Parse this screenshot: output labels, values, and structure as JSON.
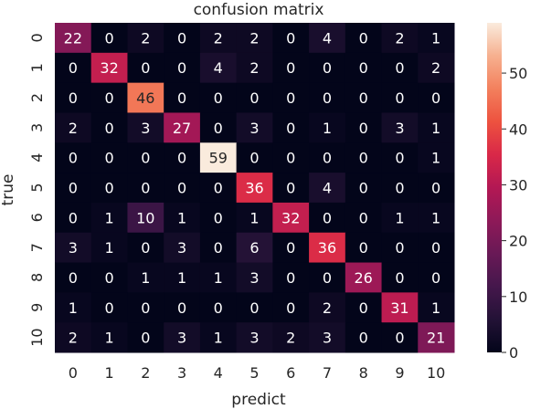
{
  "chart_data": {
    "type": "heatmap",
    "title": "confusion matrix",
    "xlabel": "predict",
    "ylabel": "true",
    "x_categories": [
      "0",
      "1",
      "2",
      "3",
      "4",
      "5",
      "6",
      "7",
      "8",
      "9",
      "10"
    ],
    "y_categories": [
      "0",
      "1",
      "2",
      "3",
      "4",
      "5",
      "6",
      "7",
      "8",
      "9",
      "10"
    ],
    "values": [
      [
        22,
        0,
        2,
        0,
        2,
        2,
        0,
        4,
        0,
        2,
        1
      ],
      [
        0,
        32,
        0,
        0,
        4,
        2,
        0,
        0,
        0,
        0,
        2
      ],
      [
        0,
        0,
        46,
        0,
        0,
        0,
        0,
        0,
        0,
        0,
        0
      ],
      [
        2,
        0,
        3,
        27,
        0,
        3,
        0,
        1,
        0,
        3,
        1
      ],
      [
        0,
        0,
        0,
        0,
        59,
        0,
        0,
        0,
        0,
        0,
        1
      ],
      [
        0,
        0,
        0,
        0,
        0,
        36,
        0,
        4,
        0,
        0,
        0
      ],
      [
        0,
        1,
        10,
        1,
        0,
        1,
        32,
        0,
        0,
        1,
        1
      ],
      [
        3,
        1,
        0,
        3,
        0,
        6,
        0,
        36,
        0,
        0,
        0
      ],
      [
        0,
        0,
        1,
        1,
        1,
        3,
        0,
        0,
        26,
        0,
        0
      ],
      [
        1,
        0,
        0,
        0,
        0,
        0,
        0,
        2,
        0,
        31,
        1
      ],
      [
        2,
        1,
        0,
        3,
        1,
        3,
        2,
        3,
        0,
        0,
        21
      ]
    ],
    "colorscale": "rocket",
    "colorbar": {
      "range": [
        0,
        59
      ],
      "ticks": [
        0,
        10,
        20,
        30,
        40,
        50
      ],
      "tick_labels": [
        "0",
        "10",
        "20",
        "30",
        "40",
        "50"
      ]
    }
  }
}
